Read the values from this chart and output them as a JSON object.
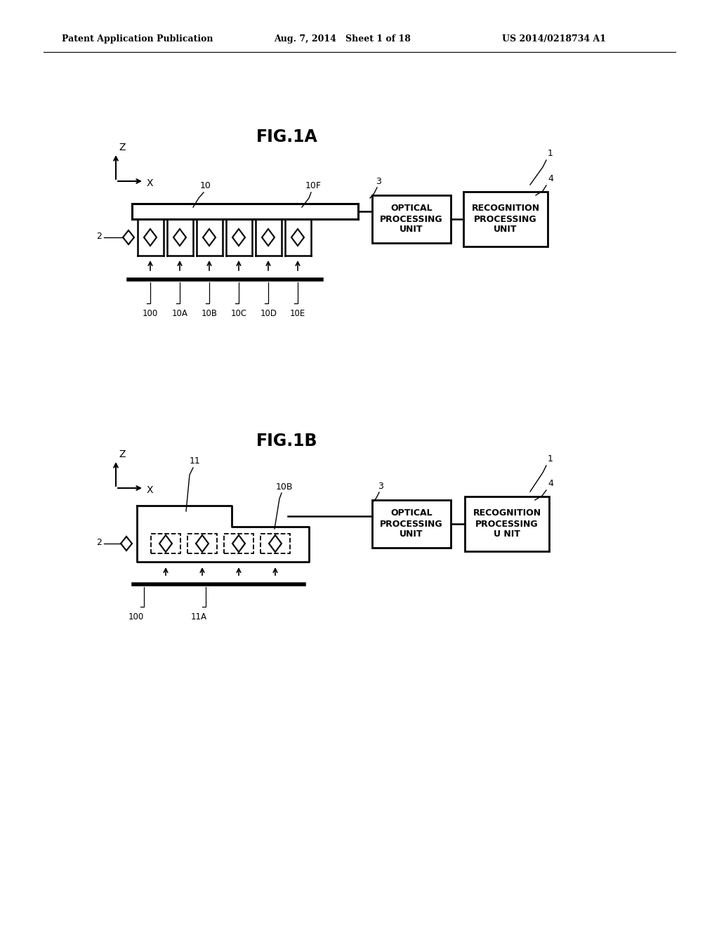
{
  "bg_color": "#ffffff",
  "header_left": "Patent Application Publication",
  "header_mid": "Aug. 7, 2014   Sheet 1 of 18",
  "header_right": "US 2014/0218734 A1",
  "fig1a_title": "FIG.1A",
  "fig1b_title": "FIG.1B",
  "opt_text_a": "OPTICAL\nPROCESSING\nUNIT",
  "rec_text_a": "RECOGNITION\nPROCESSING\nUNIT",
  "opt_text_b": "OPTICAL\nPROCESSING\nUNIT",
  "rec_text_b": "RECOGNITION\nPROCESSING\nU NIT",
  "lbl_10": "10",
  "lbl_10F": "10F",
  "lbl_3a": "3",
  "lbl_1a": "1",
  "lbl_4a": "4",
  "lbl_2a": "2",
  "lbl_100a": "100",
  "lbl_10A": "10A",
  "lbl_10B_a": "10B",
  "lbl_10C": "10C",
  "lbl_10D": "10D",
  "lbl_10E": "10E",
  "lbl_11": "11",
  "lbl_10B_b": "10B",
  "lbl_3b": "3",
  "lbl_1b": "1",
  "lbl_4b": "4",
  "lbl_2b": "2",
  "lbl_100b": "100",
  "lbl_11A": "11A"
}
